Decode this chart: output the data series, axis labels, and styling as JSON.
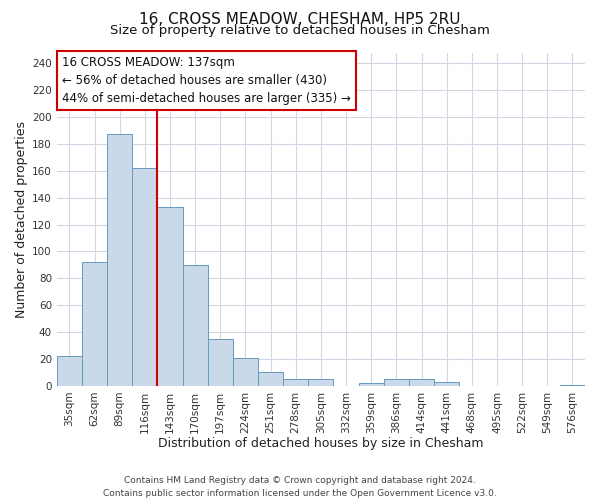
{
  "title": "16, CROSS MEADOW, CHESHAM, HP5 2RU",
  "subtitle": "Size of property relative to detached houses in Chesham",
  "xlabel": "Distribution of detached houses by size in Chesham",
  "ylabel": "Number of detached properties",
  "bin_labels": [
    "35sqm",
    "62sqm",
    "89sqm",
    "116sqm",
    "143sqm",
    "170sqm",
    "197sqm",
    "224sqm",
    "251sqm",
    "278sqm",
    "305sqm",
    "332sqm",
    "359sqm",
    "386sqm",
    "414sqm",
    "441sqm",
    "468sqm",
    "495sqm",
    "522sqm",
    "549sqm",
    "576sqm"
  ],
  "bar_values": [
    22,
    92,
    187,
    162,
    133,
    90,
    35,
    21,
    10,
    5,
    5,
    0,
    2,
    5,
    5,
    3,
    0,
    0,
    0,
    0,
    1
  ],
  "bar_color": "#c9d9ea",
  "bar_edgecolor": "#6699bb",
  "vline_color": "#cc0000",
  "vline_position": 3.5,
  "annotation_title": "16 CROSS MEADOW: 137sqm",
  "annotation_line1": "← 56% of detached houses are smaller (430)",
  "annotation_line2": "44% of semi-detached houses are larger (335) →",
  "annotation_box_edgecolor": "#cc0000",
  "ylim": [
    0,
    248
  ],
  "yticks": [
    0,
    20,
    40,
    60,
    80,
    100,
    120,
    140,
    160,
    180,
    200,
    220,
    240
  ],
  "footer_line1": "Contains HM Land Registry data © Crown copyright and database right 2024.",
  "footer_line2": "Contains public sector information licensed under the Open Government Licence v3.0.",
  "background_color": "#ffffff",
  "plot_bg_color": "#ffffff",
  "grid_color": "#d0d8e4",
  "title_fontsize": 11,
  "subtitle_fontsize": 9.5,
  "axis_label_fontsize": 9,
  "tick_fontsize": 7.5,
  "annotation_fontsize": 8.5,
  "footer_fontsize": 6.5
}
